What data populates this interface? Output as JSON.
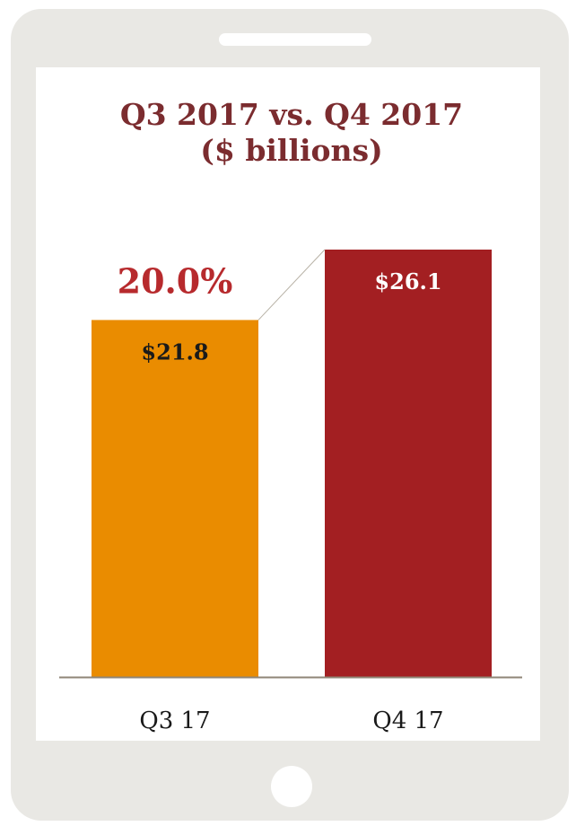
{
  "chart_data": {
    "type": "bar",
    "title": "Q3 2017 vs. Q4 2017",
    "subtitle": "($ billions)",
    "categories": [
      "Q3 17",
      "Q4 17"
    ],
    "values": [
      21.8,
      26.1
    ],
    "value_labels": [
      "$21.8",
      "$26.1"
    ],
    "bar_colors": [
      "#ea8c00",
      "#a31f22"
    ],
    "value_label_colors": [
      "#1a1a1a",
      "#ffffff"
    ],
    "annotation": "20.0%",
    "annotation_color": "#b72a2d",
    "title_color": "#7b2c2f",
    "ylim": [
      0,
      26.1
    ],
    "grid": false
  }
}
